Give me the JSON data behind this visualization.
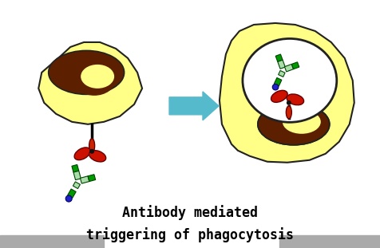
{
  "title_line1": "Antibody mediated",
  "title_line2": "triggering of phagocytosis",
  "title_fontsize": 12,
  "title_fontweight": "bold",
  "bg_color": "#ffffff",
  "bottom_bar_color": "#aaaaaa",
  "cell_fill": "#ffff88",
  "cell_edge": "#222222",
  "nucleus_fill": "#5c2000",
  "nucleus_edge": "#222222",
  "arrow_color": "#55bbcc",
  "receptor_stem_color": "#000000",
  "receptor_red_top": "#cc2200",
  "receptor_red_body": "#cc1100",
  "antibody_green_dark": "#009900",
  "antibody_green_light": "#aaddaa",
  "antibody_blue": "#2222cc",
  "phagosome_fill": "#ffffff",
  "phagosome_edge": "#222222"
}
